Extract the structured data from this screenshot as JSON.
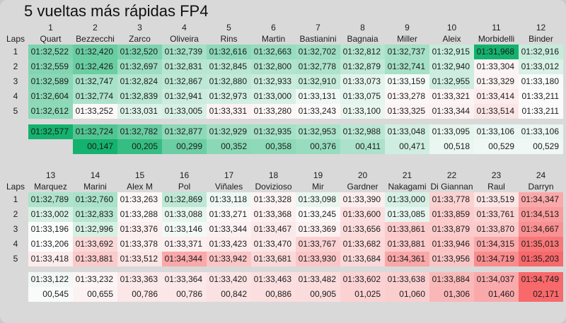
{
  "title": "5 vueltas más rápidas FP4",
  "laps_label": "Laps",
  "lap_numbers": [
    "1",
    "2",
    "3",
    "4",
    "5"
  ],
  "colors": {
    "background": "#d9d9da",
    "scale_green": "#14b26e",
    "scale_white": "#fcfcfc",
    "scale_red": "#f8696b",
    "best_lap_highlight": "#14b26e",
    "text": "#1b1b1b"
  },
  "scales": {
    "laps": {
      "min": 91.968,
      "mid": 93.2,
      "max": 95.203
    },
    "avg": {
      "min": 92.577,
      "mid": 93.15,
      "max": 94.749
    },
    "gap": {
      "min": 0.147,
      "mid": 0.55,
      "max": 2.171
    }
  },
  "tables": [
    {
      "positions": [
        "1",
        "2",
        "3",
        "4",
        "5",
        "6",
        "7",
        "8",
        "9",
        "10",
        "11",
        "12"
      ],
      "riders": [
        "Quart",
        "Bezzecchi",
        "Zarco",
        "Oliveira",
        "Rins",
        "Martin",
        "Bastianini",
        "Bagnaia",
        "Miller",
        "Aleix",
        "Morbidelli",
        "Binder"
      ],
      "rows": [
        [
          "01:32,522",
          "01:32,420",
          "01:32,520",
          "01:32,739",
          "01:32,616",
          "01:32,663",
          "01:32,702",
          "01:32,812",
          "01:32,737",
          "01:32,915",
          "01:31,968",
          "01:32,916"
        ],
        [
          "01:32,559",
          "01:32,426",
          "01:32,697",
          "01:32,831",
          "01:32,845",
          "01:32,800",
          "01:32,778",
          "01:32,879",
          "01:32,741",
          "01:32,940",
          "01:33,304",
          "01:33,012"
        ],
        [
          "01:32,589",
          "01:32,747",
          "01:32,824",
          "01:32,867",
          "01:32,880",
          "01:32,933",
          "01:32,910",
          "01:33,073",
          "01:33,159",
          "01:32,955",
          "01:33,329",
          "01:33,180"
        ],
        [
          "01:32,604",
          "01:32,774",
          "01:32,839",
          "01:32,941",
          "01:32,973",
          "01:33,000",
          "01:33,131",
          "01:33,075",
          "01:33,278",
          "01:33,321",
          "01:33,414",
          "01:33,211"
        ],
        [
          "01:32,612",
          "01:33,252",
          "01:33,031",
          "01:33,005",
          "01:33,331",
          "01:33,280",
          "01:33,243",
          "01:33,100",
          "01:33,325",
          "01:33,344",
          "01:33,514",
          "01:33,211"
        ]
      ],
      "averages": [
        "01:32,577",
        "01:32,724",
        "01:32,782",
        "01:32,877",
        "01:32,929",
        "01:32,935",
        "01:32,953",
        "01:32,988",
        "01:33,048",
        "01:33,095",
        "01:33,106",
        "01:33,106"
      ],
      "gaps": [
        null,
        "00,147",
        "00,205",
        "00,299",
        "00,352",
        "00,358",
        "00,376",
        "00,411",
        "00,471",
        "00,518",
        "00,529",
        "00,529"
      ]
    },
    {
      "positions": [
        "13",
        "14",
        "15",
        "16",
        "17",
        "18",
        "19",
        "20",
        "21",
        "22",
        "23",
        "24"
      ],
      "riders": [
        "Marquez",
        "Marini",
        "Alex M",
        "Pol",
        "Viñales",
        "Dovizioso",
        "Mir",
        "Gardner",
        "Nakagami",
        "Di Giannan",
        "Raul",
        "Darryn"
      ],
      "rows": [
        [
          "01:32,789",
          "01:32,760",
          "01:33,263",
          "01:32,869",
          "01:33,118",
          "01:33,328",
          "01:33,098",
          "01:33,390",
          "01:33,000",
          "01:33,778",
          "01:33,519",
          "01:34,347"
        ],
        [
          "01:33,002",
          "01:32,833",
          "01:33,288",
          "01:33,088",
          "01:33,271",
          "01:33,368",
          "01:33,245",
          "01:33,600",
          "01:33,085",
          "01:33,859",
          "01:33,761",
          "01:34,513"
        ],
        [
          "01:33,196",
          "01:32,996",
          "01:33,376",
          "01:33,146",
          "01:33,344",
          "01:33,467",
          "01:33,369",
          "01:33,656",
          "01:33,861",
          "01:33,879",
          "01:33,870",
          "01:34,667"
        ],
        [
          "01:33,206",
          "01:33,692",
          "01:33,378",
          "01:33,371",
          "01:33,423",
          "01:33,470",
          "01:33,767",
          "01:33,682",
          "01:33,881",
          "01:33,946",
          "01:34,315",
          "01:35,013"
        ],
        [
          "01:33,418",
          "01:33,881",
          "01:33,512",
          "01:34,344",
          "01:33,942",
          "01:33,681",
          "01:33,930",
          "01:33,684",
          "01:34,361",
          "01:33,956",
          "01:34,719",
          "01:35,203"
        ]
      ],
      "averages": [
        "01:33,122",
        "01:33,232",
        "01:33,363",
        "01:33,364",
        "01:33,420",
        "01:33,463",
        "01:33,482",
        "01:33,602",
        "01:33,638",
        "01:33,884",
        "01:34,037",
        "01:34,749"
      ],
      "gaps": [
        "00,545",
        "00,655",
        "00,786",
        "00,786",
        "00,842",
        "00,886",
        "00,905",
        "01,025",
        "01,060",
        "01,306",
        "01,460",
        "02,171"
      ]
    }
  ]
}
